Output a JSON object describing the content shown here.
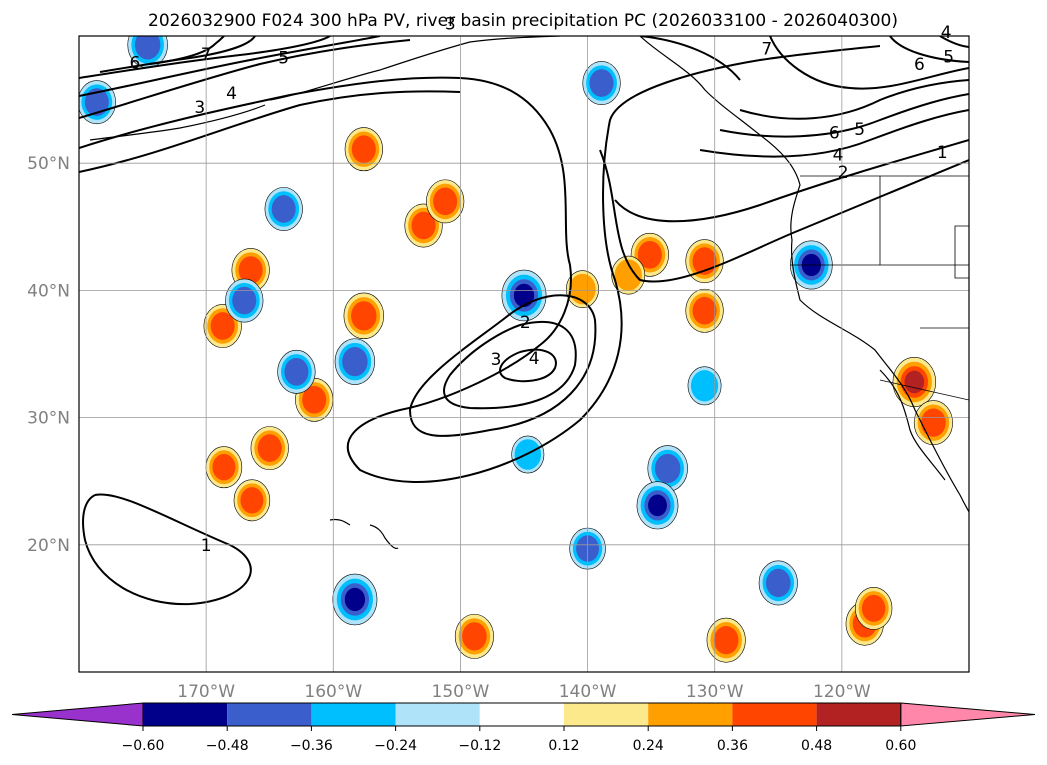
{
  "title": "2026032900 F024 300 hPa PV, river basin precipitation PC (2026033100 - 2026040300)",
  "map": {
    "lon_range": [
      -180,
      -110
    ],
    "lat_range": [
      10,
      60
    ],
    "grid": true,
    "lon_ticks": [
      {
        "value": -170,
        "label": "170°W"
      },
      {
        "value": -160,
        "label": "160°W"
      },
      {
        "value": -150,
        "label": "150°W"
      },
      {
        "value": -140,
        "label": "140°W"
      },
      {
        "value": -130,
        "label": "130°W"
      },
      {
        "value": -120,
        "label": "120°W"
      }
    ],
    "lat_ticks": [
      {
        "value": 50,
        "label": "50°N"
      },
      {
        "value": 40,
        "label": "40°N"
      },
      {
        "value": 30,
        "label": "30°N"
      },
      {
        "value": 20,
        "label": "20°N"
      }
    ],
    "pv_contour_labels": [
      {
        "text": "6",
        "lon": -175.6,
        "lat": 57.9
      },
      {
        "text": "7",
        "lon": -170.0,
        "lat": 58.6
      },
      {
        "text": "5",
        "lon": -163.9,
        "lat": 58.3
      },
      {
        "text": "4",
        "lon": -168.0,
        "lat": 55.5
      },
      {
        "text": "3",
        "lon": -170.5,
        "lat": 54.4
      },
      {
        "text": "3",
        "lon": -150.8,
        "lat": 61.0
      },
      {
        "text": "7",
        "lon": -125.9,
        "lat": 59.0
      },
      {
        "text": "6",
        "lon": -113.9,
        "lat": 57.8
      },
      {
        "text": "5",
        "lon": -111.6,
        "lat": 58.4
      },
      {
        "text": "4",
        "lon": -111.8,
        "lat": 60.3
      },
      {
        "text": "6",
        "lon": -120.6,
        "lat": 52.4
      },
      {
        "text": "5",
        "lon": -118.6,
        "lat": 52.7
      },
      {
        "text": "4",
        "lon": -120.3,
        "lat": 50.7
      },
      {
        "text": "2",
        "lon": -119.9,
        "lat": 49.3
      },
      {
        "text": "1",
        "lon": -112.1,
        "lat": 50.9
      },
      {
        "text": "2",
        "lon": -144.9,
        "lat": 37.5
      },
      {
        "text": "3",
        "lon": -147.2,
        "lat": 34.6
      },
      {
        "text": "4",
        "lon": -144.2,
        "lat": 34.7
      },
      {
        "text": "1",
        "lon": -170.0,
        "lat": 20.0
      }
    ],
    "precip_pc_positive": [
      {
        "lon": -166.5,
        "lat": 41.6,
        "value": 0.4
      },
      {
        "lon": -168.7,
        "lat": 37.2,
        "value": 0.4
      },
      {
        "lon": -157.6,
        "lat": 38.0,
        "value": 0.45
      },
      {
        "lon": -157.6,
        "lat": 51.1,
        "value": 0.4
      },
      {
        "lon": -152.9,
        "lat": 45.1,
        "value": 0.4
      },
      {
        "lon": -151.2,
        "lat": 47.0,
        "value": 0.4
      },
      {
        "lon": -161.5,
        "lat": 31.4,
        "value": 0.4
      },
      {
        "lon": -165.0,
        "lat": 27.6,
        "value": 0.4
      },
      {
        "lon": -166.4,
        "lat": 23.5,
        "value": 0.36
      },
      {
        "lon": -168.6,
        "lat": 26.1,
        "value": 0.36
      },
      {
        "lon": -135.1,
        "lat": 42.8,
        "value": 0.4
      },
      {
        "lon": -130.8,
        "lat": 42.3,
        "value": 0.4
      },
      {
        "lon": -130.8,
        "lat": 38.4,
        "value": 0.4
      },
      {
        "lon": -140.4,
        "lat": 40.1,
        "value": 0.28
      },
      {
        "lon": -136.8,
        "lat": 41.2,
        "value": 0.3
      },
      {
        "lon": -148.9,
        "lat": 12.8,
        "value": 0.42
      },
      {
        "lon": -129.1,
        "lat": 12.5,
        "value": 0.42
      },
      {
        "lon": -114.3,
        "lat": 32.8,
        "value": 0.52
      },
      {
        "lon": -112.8,
        "lat": 29.6,
        "value": 0.42
      },
      {
        "lon": -118.2,
        "lat": 13.8,
        "value": 0.4
      },
      {
        "lon": -117.5,
        "lat": 15.0,
        "value": 0.38
      }
    ],
    "precip_pc_negative": [
      {
        "lon": -174.6,
        "lat": 59.3,
        "value": -0.45
      },
      {
        "lon": -178.6,
        "lat": 54.8,
        "value": -0.4
      },
      {
        "lon": -167.0,
        "lat": 39.2,
        "value": -0.4
      },
      {
        "lon": -163.9,
        "lat": 46.4,
        "value": -0.4
      },
      {
        "lon": -145.0,
        "lat": 39.6,
        "value": -0.55
      },
      {
        "lon": -158.3,
        "lat": 34.4,
        "value": -0.45
      },
      {
        "lon": -162.9,
        "lat": 33.6,
        "value": -0.4
      },
      {
        "lon": -138.9,
        "lat": 56.3,
        "value": -0.4
      },
      {
        "lon": -122.4,
        "lat": 42.0,
        "value": -0.5
      },
      {
        "lon": -125.0,
        "lat": 17.0,
        "value": -0.42
      },
      {
        "lon": -158.3,
        "lat": 15.7,
        "value": -0.55
      },
      {
        "lon": -133.7,
        "lat": 26.0,
        "value": -0.45
      },
      {
        "lon": -134.5,
        "lat": 23.1,
        "value": -0.48
      },
      {
        "lon": -140.0,
        "lat": 19.7,
        "value": -0.36
      },
      {
        "lon": -130.8,
        "lat": 32.5,
        "value": -0.3
      },
      {
        "lon": -144.7,
        "lat": 27.1,
        "value": -0.28
      }
    ]
  },
  "colorbar": {
    "ticks": [
      "−0.60",
      "−0.48",
      "−0.36",
      "−0.24",
      "−0.12",
      "0.12",
      "0.24",
      "0.36",
      "0.48",
      "0.60"
    ],
    "colors": [
      "#9932cc",
      "#00008b",
      "#3a5fcd",
      "#00bfff",
      "#aee3fa",
      "#ffffff",
      "#fbe98b",
      "#ff9f00",
      "#ff4500",
      "#b22222",
      "#ff88aa"
    ]
  }
}
